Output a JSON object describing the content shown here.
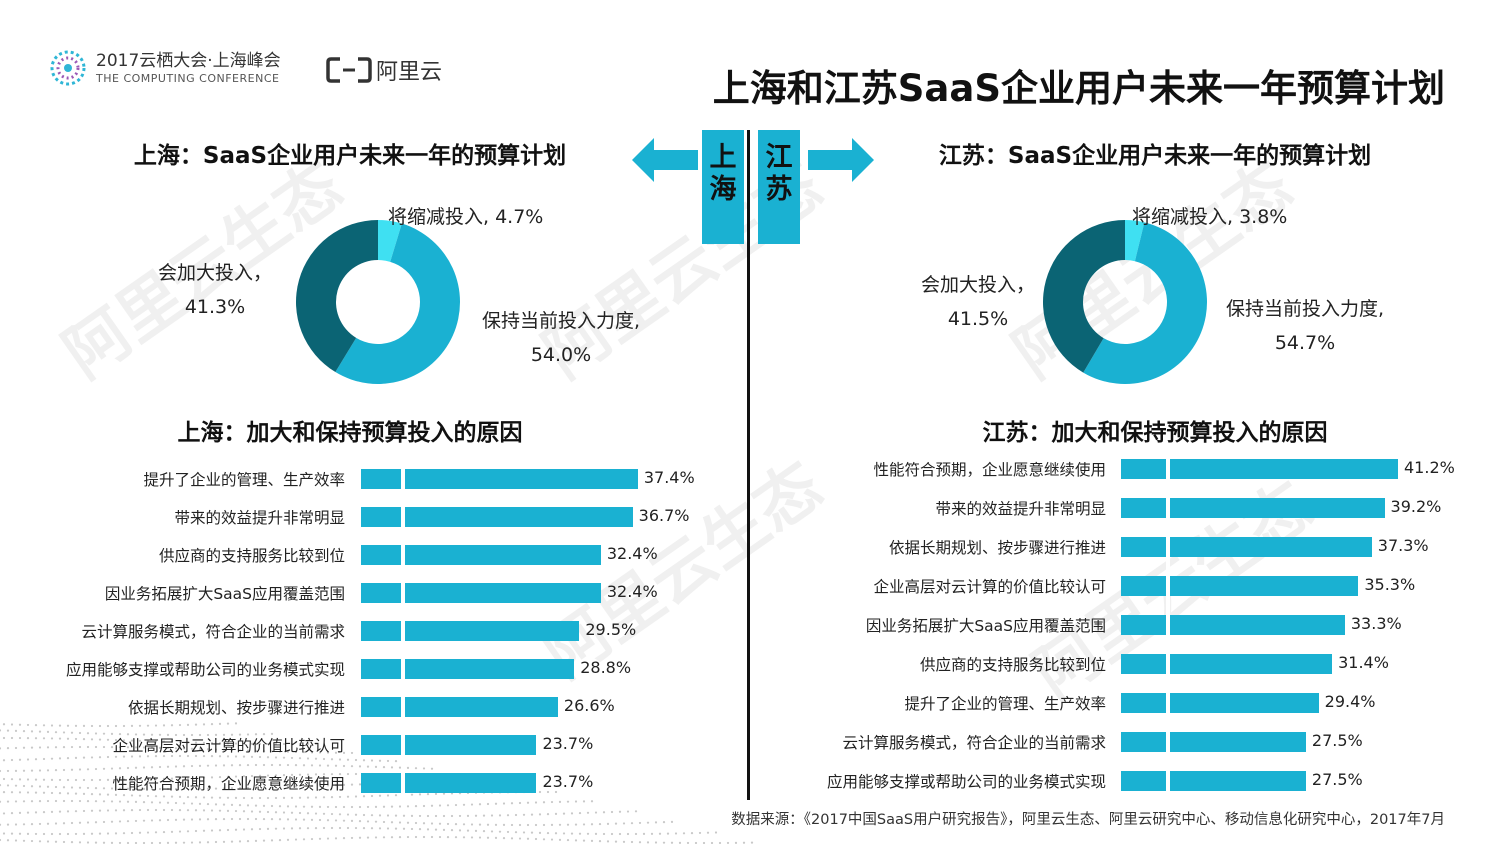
{
  "header": {
    "conference_cn": "2017云栖大会·上海峰会",
    "conference_en": "THE COMPUTING CONFERENCE",
    "brand": "阿里云"
  },
  "title": "上海和江苏SaaS企业用户未来一年预算计划",
  "watermark": "阿里云生态",
  "regions": {
    "left": "上海",
    "right": "江苏"
  },
  "colors": {
    "accent": "#1ab1d2",
    "dark": "#0b6474",
    "light": "#3fe0f2"
  },
  "chart_data": [
    {
      "type": "pie",
      "title": "上海：SaaS企业用户未来一年的预算计划",
      "slices": [
        {
          "label": "将缩减投入",
          "value": 4.7,
          "display": "将缩减投入, 4.7%",
          "color": "#3fe0f2"
        },
        {
          "label": "保持当前投入力度",
          "value": 54.0,
          "display_1": "保持当前投入力度,",
          "display_2": "54.0%",
          "color": "#1ab1d2"
        },
        {
          "label": "会加大投入",
          "value": 41.3,
          "display_1": "会加大投入，",
          "display_2": "41.3%",
          "color": "#0b6474"
        }
      ]
    },
    {
      "type": "pie",
      "title": "江苏：SaaS企业用户未来一年的预算计划",
      "slices": [
        {
          "label": "将缩减投入",
          "value": 3.8,
          "display": "将缩减投入, 3.8%",
          "color": "#3fe0f2"
        },
        {
          "label": "保持当前投入力度",
          "value": 54.7,
          "display_1": "保持当前投入力度,",
          "display_2": "54.7%",
          "color": "#1ab1d2"
        },
        {
          "label": "会加大投入",
          "value": 41.5,
          "display_1": "会加大投入，",
          "display_2": "41.5%",
          "color": "#0b6474"
        }
      ]
    },
    {
      "type": "bar",
      "orientation": "horizontal",
      "title": "上海：加大和保持预算投入的原因",
      "categories": [
        "提升了企业的管理、生产效率",
        "带来的效益提升非常明显",
        "供应商的支持服务比较到位",
        "因业务拓展扩大SaaS应用覆盖范围",
        "云计算服务模式，符合企业的当前需求",
        "应用能够支撑或帮助公司的业务模式实现",
        "依据长期规划、按步骤进行推进",
        "企业高层对云计算的价值比较认可",
        "性能符合预期，企业愿意继续使用"
      ],
      "values": [
        37.4,
        36.7,
        32.4,
        32.4,
        29.5,
        28.8,
        26.6,
        23.7,
        23.7
      ],
      "value_labels": [
        "37.4%",
        "36.7%",
        "32.4%",
        "32.4%",
        "29.5%",
        "28.8%",
        "26.6%",
        "23.7%",
        "23.7%"
      ],
      "xlim": [
        0,
        41.2
      ]
    },
    {
      "type": "bar",
      "orientation": "horizontal",
      "title": "江苏：加大和保持预算投入的原因",
      "categories": [
        "性能符合预期，企业愿意继续使用",
        "带来的效益提升非常明显",
        "依据长期规划、按步骤进行推进",
        "企业高层对云计算的价值比较认可",
        "因业务拓展扩大SaaS应用覆盖范围",
        "供应商的支持服务比较到位",
        "提升了企业的管理、生产效率",
        "云计算服务模式，符合企业的当前需求",
        "应用能够支撑或帮助公司的业务模式实现"
      ],
      "values": [
        41.2,
        39.2,
        37.3,
        35.3,
        33.3,
        31.4,
        29.4,
        27.5,
        27.5
      ],
      "value_labels": [
        "41.2%",
        "39.2%",
        "37.3%",
        "35.3%",
        "33.3%",
        "31.4%",
        "29.4%",
        "27.5%",
        "27.5%"
      ],
      "xlim": [
        0,
        41.2
      ]
    }
  ],
  "source": "数据来源：《2017中国SaaS用户研究报告》，阿里云生态、阿里云研究中心、移动信息化研究中心，2017年7月"
}
